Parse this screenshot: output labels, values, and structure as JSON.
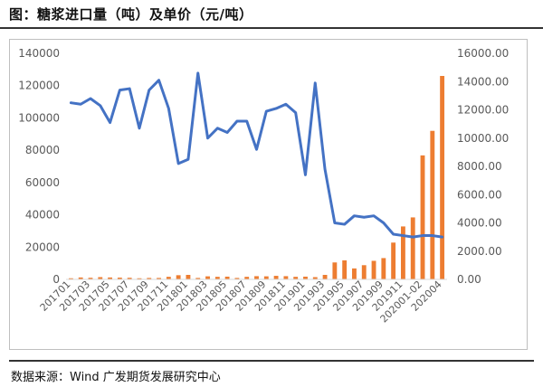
{
  "title": "图：糖浆进口量（吨）及单价（元/吨）",
  "source": "数据来源：Wind 广发期货发展研究中心",
  "colors": {
    "bar": "#ed7d31",
    "line": "#4472c4"
  },
  "chart_data": {
    "type": "bar",
    "x": [
      "201701",
      "201702",
      "201703",
      "201704",
      "201705",
      "201706",
      "201707",
      "201708",
      "201709",
      "201710",
      "201711",
      "201712",
      "201801",
      "201802",
      "201803",
      "201804",
      "201805",
      "201806",
      "201807",
      "201808",
      "201809",
      "201810",
      "201811",
      "201812",
      "201901",
      "201902",
      "201903",
      "201904",
      "201905",
      "201906",
      "201907",
      "201908",
      "201909",
      "201910",
      "201911",
      "201912",
      "202001-02",
      "202003",
      "202004"
    ],
    "x_tick_labels": [
      "201701",
      "201703",
      "201705",
      "201707",
      "201709",
      "201711",
      "201801",
      "201803",
      "201805",
      "201807",
      "201809",
      "201811",
      "201901",
      "201903",
      "201905",
      "201907",
      "201909",
      "201911",
      "202001-02",
      "202004"
    ],
    "series": [
      {
        "type": "bar",
        "axis": "left",
        "values": [
          700,
          1200,
          1000,
          1400,
          1200,
          1100,
          1000,
          700,
          900,
          900,
          1600,
          2600,
          2800,
          900,
          1900,
          1600,
          1700,
          900,
          1600,
          2000,
          1900,
          2200,
          2000,
          1600,
          1700,
          1400,
          2800,
          10500,
          11800,
          6800,
          8800,
          11500,
          13200,
          22800,
          32800,
          38400,
          76800,
          92000,
          126000
        ]
      },
      {
        "type": "line",
        "axis": "right",
        "values": [
          12500,
          12400,
          12800,
          12300,
          11100,
          13400,
          13500,
          10700,
          13400,
          14100,
          12100,
          8200,
          8500,
          14600,
          10000,
          10700,
          10400,
          11200,
          11200,
          9200,
          11900,
          12100,
          12400,
          11800,
          7400,
          13900,
          7800,
          4000,
          3900,
          4500,
          4400,
          4500,
          4000,
          3200,
          3100,
          3000,
          3100,
          3100,
          3000
        ]
      }
    ],
    "y_left": {
      "ticks": [
        "0",
        "20000",
        "40000",
        "60000",
        "80000",
        "100000",
        "120000",
        "140000"
      ],
      "min": 0,
      "max": 140000
    },
    "y_right": {
      "ticks": [
        "0.00",
        "2000.00",
        "4000.00",
        "6000.00",
        "8000.00",
        "10000.00",
        "12000.00",
        "14000.00",
        "16000.00"
      ],
      "min": 0,
      "max": 16000
    },
    "grid": false,
    "legend": "none"
  }
}
